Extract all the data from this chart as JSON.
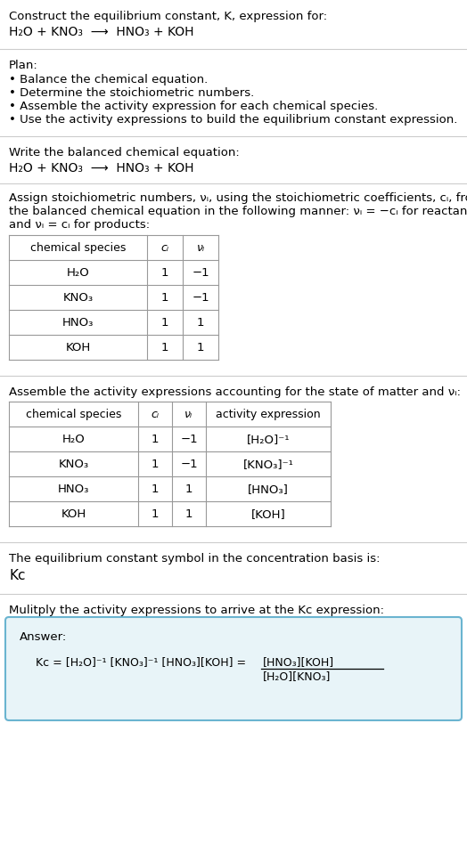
{
  "title_line1": "Construct the equilibrium constant, K, expression for:",
  "title_line2": "H₂O + KNO₃  ⟶  HNO₃ + KOH",
  "plan_header": "Plan:",
  "plan_bullets": [
    "• Balance the chemical equation.",
    "• Determine the stoichiometric numbers.",
    "• Assemble the activity expression for each chemical species.",
    "• Use the activity expressions to build the equilibrium constant expression."
  ],
  "balanced_header": "Write the balanced chemical equation:",
  "balanced_eq": "H₂O + KNO₃  ⟶  HNO₃ + KOH",
  "stoich_intro_1": "Assign stoichiometric numbers, νᵢ, using the stoichiometric coefficients, cᵢ, from",
  "stoich_intro_2": "the balanced chemical equation in the following manner: νᵢ = −cᵢ for reactants",
  "stoich_intro_3": "and νᵢ = cᵢ for products:",
  "table1_headers": [
    "chemical species",
    "cᵢ",
    "νᵢ"
  ],
  "table1_rows": [
    [
      "H₂O",
      "1",
      "−1"
    ],
    [
      "KNO₃",
      "1",
      "−1"
    ],
    [
      "HNO₃",
      "1",
      "1"
    ],
    [
      "KOH",
      "1",
      "1"
    ]
  ],
  "activity_intro": "Assemble the activity expressions accounting for the state of matter and νᵢ:",
  "table2_headers": [
    "chemical species",
    "cᵢ",
    "νᵢ",
    "activity expression"
  ],
  "table2_rows": [
    [
      "H₂O",
      "1",
      "−1",
      "[H₂O]⁻¹"
    ],
    [
      "KNO₃",
      "1",
      "−1",
      "[KNO₃]⁻¹"
    ],
    [
      "HNO₃",
      "1",
      "1",
      "[HNO₃]"
    ],
    [
      "KOH",
      "1",
      "1",
      "[KOH]"
    ]
  ],
  "kc_intro": "The equilibrium constant symbol in the concentration basis is:",
  "kc_symbol": "Kᴄ",
  "multiply_intro": "Mulitply the activity expressions to arrive at the Kᴄ expression:",
  "answer_label": "Answer:",
  "kc_eq_left": "Kᴄ = [H₂O]⁻¹ [KNO₃]⁻¹ [HNO₃][KOH] = ",
  "frac_num": "[HNO₃][KOH]",
  "frac_den": "[H₂O][KNO₃]",
  "bg_color": "#ffffff",
  "table_border_color": "#999999",
  "answer_box_fill": "#e8f4f8",
  "answer_box_edge": "#6ab4d0",
  "text_color": "#000000",
  "sep_color": "#cccccc",
  "fig_w": 5.24,
  "fig_h": 9.49,
  "dpi": 100
}
